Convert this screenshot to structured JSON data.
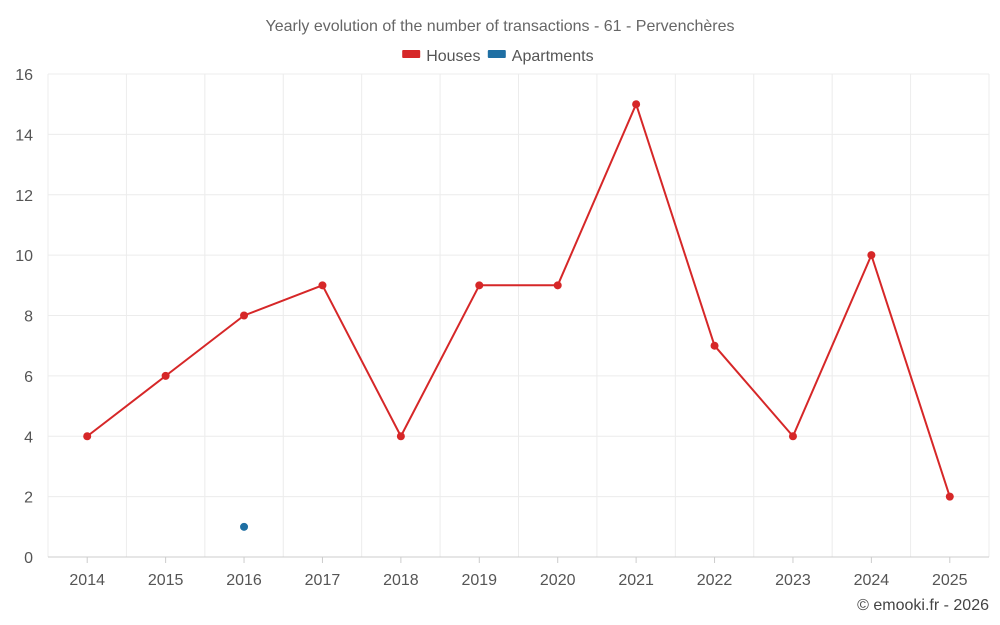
{
  "chart_data": {
    "type": "line",
    "title": "Yearly evolution of the number of transactions - 61 - Pervenchères",
    "categories": [
      "2014",
      "2015",
      "2016",
      "2017",
      "2018",
      "2019",
      "2020",
      "2021",
      "2022",
      "2023",
      "2024",
      "2025"
    ],
    "series": [
      {
        "name": "Houses",
        "color": "#d62728",
        "values": [
          4,
          6,
          8,
          9,
          4,
          9,
          9,
          15,
          7,
          4,
          10,
          2
        ]
      },
      {
        "name": "Apartments",
        "color": "#1f6fa3",
        "values": [
          null,
          null,
          1,
          null,
          null,
          null,
          null,
          null,
          null,
          null,
          null,
          null
        ]
      }
    ],
    "ylim": [
      0,
      16
    ],
    "yticks": [
      0,
      2,
      4,
      6,
      8,
      10,
      12,
      14,
      16
    ],
    "xlabel": "",
    "ylabel": "",
    "grid": true,
    "legend": "top-center"
  },
  "credit": "© emooki.fr - 2026"
}
